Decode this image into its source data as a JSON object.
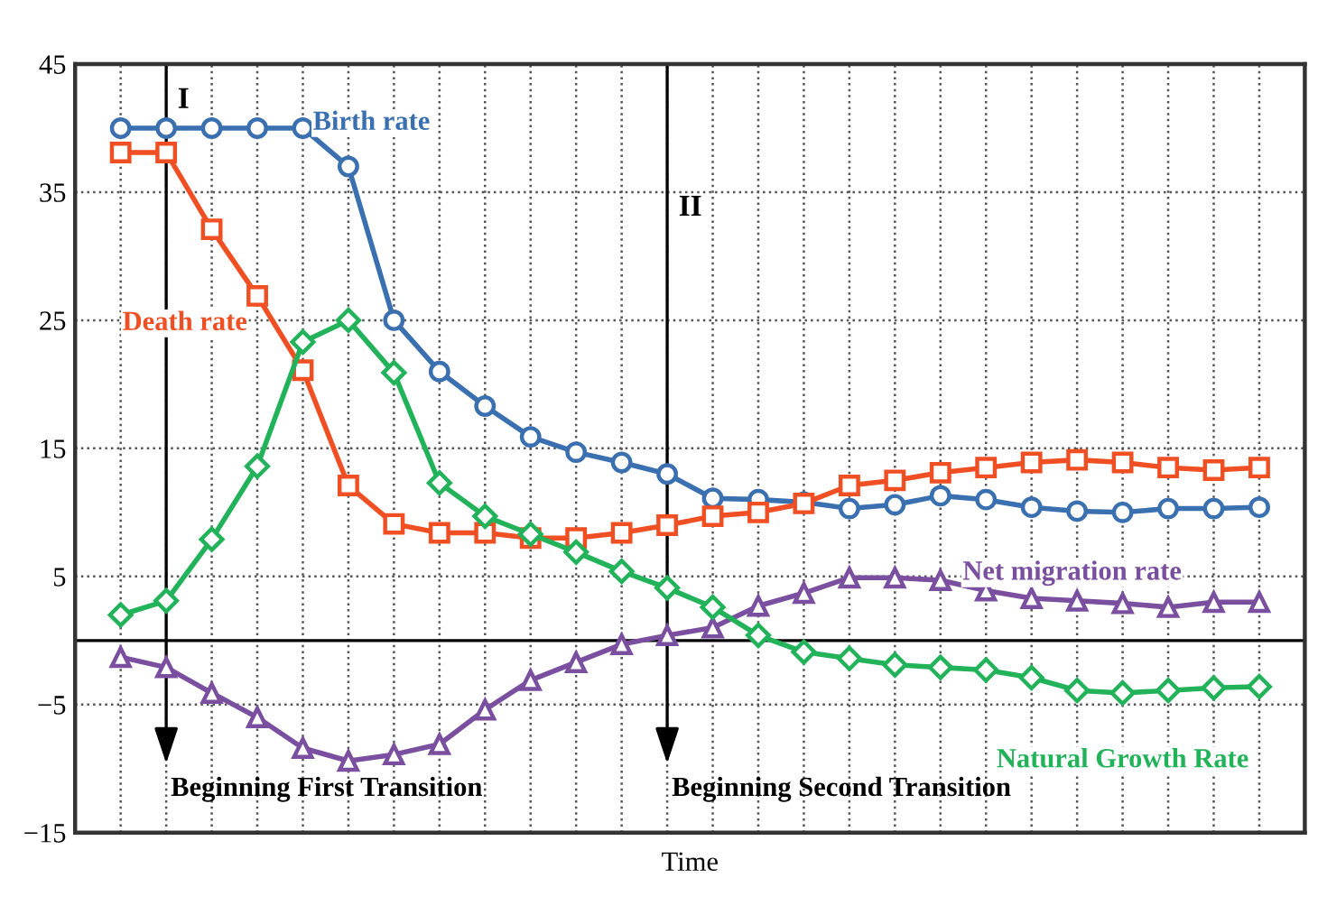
{
  "chart_data": {
    "type": "line",
    "categories": [
      null,
      null,
      null,
      null,
      null,
      null,
      null,
      null,
      null,
      null,
      null,
      null,
      null,
      null,
      null,
      null,
      null,
      null,
      null,
      null,
      null,
      null,
      null,
      null,
      null,
      null
    ],
    "xlabel": "Time",
    "ylim": [
      -15,
      45
    ],
    "yticks": [
      {
        "value": -15,
        "label": "−15"
      },
      {
        "value": -5,
        "label": "−5"
      },
      5,
      15,
      25,
      35,
      45
    ],
    "grid": true,
    "line_style": "solid",
    "series": [
      {
        "name": "Birth rate",
        "color": "#3a70b0",
        "marker": "circle",
        "values": [
          40,
          40,
          40,
          40,
          40,
          37,
          25,
          21,
          18.3,
          15.9,
          14.7,
          13.9,
          13,
          11.1,
          11,
          10.8,
          10.3,
          10.6,
          11.3,
          11,
          10.4,
          10.1,
          10,
          10.3,
          10.3,
          10.4
        ]
      },
      {
        "name": "Death rate",
        "color": "#f04e23",
        "marker": "square",
        "values": [
          38.1,
          38.1,
          32.1,
          26.9,
          21.1,
          12.1,
          9.1,
          8.4,
          8.4,
          8,
          8,
          8.4,
          9,
          9.7,
          10,
          10.7,
          12.1,
          12.5,
          13.1,
          13.5,
          13.9,
          14.1,
          13.9,
          13.5,
          13.3,
          13.5
        ]
      },
      {
        "name": "Net migration rate",
        "color": "#7b4fa0",
        "marker": "triangle",
        "values": [
          -1.3,
          -2.1,
          -4.1,
          -6,
          -8.4,
          -9.4,
          -8.9,
          -8.1,
          -5.4,
          -3.1,
          -1.7,
          -0.3,
          0.4,
          1,
          2.7,
          3.7,
          4.9,
          4.9,
          4.7,
          3.9,
          3.3,
          3.1,
          2.9,
          2.6,
          3,
          3
        ]
      },
      {
        "name": "Natural Growth Rate",
        "color": "#22b35a",
        "marker": "diamond",
        "values": [
          2,
          3.1,
          7.9,
          13.6,
          23.3,
          25,
          20.9,
          12.3,
          9.7,
          8.3,
          6.9,
          5.4,
          4.1,
          2.6,
          0.4,
          -0.9,
          -1.4,
          -1.9,
          -2.1,
          -2.3,
          -2.9,
          -3.9,
          -4.1,
          -3.9,
          -3.7,
          -3.6
        ]
      }
    ],
    "ref_lines": [
      {
        "axis": "y",
        "value": 0,
        "color": "#000000",
        "line_style": "solid"
      }
    ],
    "annotations": [
      "I",
      "II",
      "Beginning First Transition",
      "Beginning Second Transition"
    ]
  }
}
